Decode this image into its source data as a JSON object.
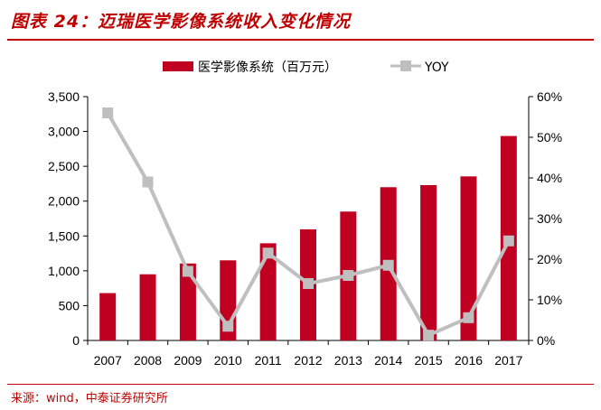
{
  "header": {
    "title": "图表 24：迈瑞医学影像系统收入变化情况"
  },
  "footer": {
    "source": "来源：wind，中泰证券研究所"
  },
  "chart_data": {
    "type": "bar",
    "categories": [
      "2007",
      "2008",
      "2009",
      "2010",
      "2011",
      "2012",
      "2013",
      "2014",
      "2015",
      "2016",
      "2017"
    ],
    "series": [
      {
        "name": "医学影像系统（百万元）",
        "kind": "bar",
        "axis": "left",
        "color": "#c00020",
        "values": [
          680,
          950,
          1105,
          1150,
          1395,
          1595,
          1850,
          2200,
          2230,
          2355,
          2935
        ]
      },
      {
        "name": "YOY",
        "kind": "line",
        "axis": "right",
        "color": "#bfbfbf",
        "values": [
          0.56,
          0.39,
          0.17,
          0.035,
          0.215,
          0.14,
          0.16,
          0.185,
          0.013,
          0.056,
          0.245
        ]
      }
    ],
    "y_left": {
      "range": [
        0,
        3500
      ],
      "ticks": [
        "0",
        "500",
        "1,000",
        "1,500",
        "2,000",
        "2,500",
        "3,000",
        "3,500"
      ]
    },
    "y_right": {
      "range": [
        0,
        0.6
      ],
      "ticks": [
        "0%",
        "10%",
        "20%",
        "30%",
        "40%",
        "50%",
        "60%"
      ]
    },
    "legend_position": "top-center",
    "grid": false
  }
}
